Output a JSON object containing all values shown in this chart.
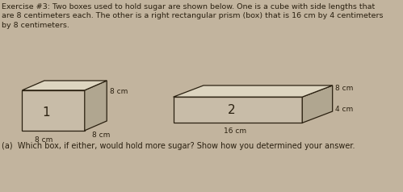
{
  "bg_color": "#c2b49e",
  "title_text1": "Exercise #3: Two boxes used to hold sugar are shown below. One is a cube with side lengths that",
  "title_text2": "are 8 centimeters each. The other is a right rectangular prism (box) that is 16 cm by 4 centimeters",
  "title_text3": "by 8 centimeters.",
  "question_text": "(a)  Which box, if either, would hold more sugar? Show how you determined your answer.",
  "box1_label": "1",
  "box2_label": "2",
  "line_color": "#2a2010",
  "face_color_front": "#c8bca8",
  "face_color_side": "#b0a690",
  "face_color_top": "#ddd5c0",
  "font_size_title": 6.8,
  "font_size_label": 11,
  "font_size_dim": 6.5,
  "font_size_question": 7.0,
  "b1x": 0.55,
  "b1y": 3.2,
  "b1w": 1.55,
  "b1h": 2.1,
  "b1dx": 0.55,
  "b1dy": 0.5,
  "b2x": 4.3,
  "b2y": 3.6,
  "b2w": 3.2,
  "b2h": 1.35,
  "b2dx": 0.75,
  "b2dy": 0.6
}
